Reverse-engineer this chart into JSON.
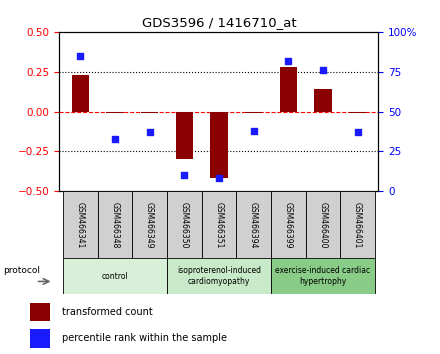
{
  "title": "GDS3596 / 1416710_at",
  "samples": [
    "GSM466341",
    "GSM466348",
    "GSM466349",
    "GSM466350",
    "GSM466351",
    "GSM466394",
    "GSM466399",
    "GSM466400",
    "GSM466401"
  ],
  "transformed_count": [
    0.23,
    -0.01,
    -0.01,
    -0.3,
    -0.42,
    -0.01,
    0.28,
    0.14,
    -0.01
  ],
  "percentile_rank": [
    85,
    33,
    37,
    10,
    8,
    38,
    82,
    76,
    37
  ],
  "bar_color": "#8B0000",
  "scatter_color": "#1a1aff",
  "groups": [
    {
      "label": "control",
      "indices": [
        0,
        1,
        2
      ],
      "color": "#d8f0d8"
    },
    {
      "label": "isoproterenol-induced\ncardiomyopathy",
      "indices": [
        3,
        4,
        5
      ],
      "color": "#c8eac8"
    },
    {
      "label": "exercise-induced cardiac\nhypertrophy",
      "indices": [
        6,
        7,
        8
      ],
      "color": "#88cc88"
    }
  ],
  "ylim_left": [
    -0.5,
    0.5
  ],
  "ylim_right": [
    0,
    100
  ],
  "yticks_left": [
    -0.5,
    -0.25,
    0,
    0.25,
    0.5
  ],
  "yticks_right": [
    0,
    25,
    50,
    75,
    100
  ],
  "legend_bar_label": "transformed count",
  "legend_scatter_label": "percentile rank within the sample",
  "protocol_label": "protocol",
  "sample_box_color": "#d0d0d0",
  "bar_width": 0.5
}
